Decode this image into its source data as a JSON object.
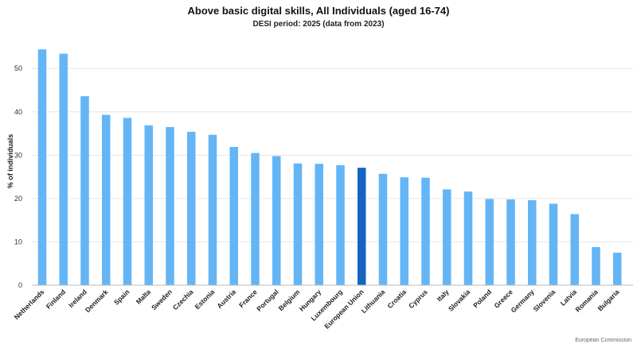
{
  "chart_data": {
    "type": "bar",
    "title": "Above basic digital skills, All Individuals (aged 16-74)",
    "subtitle": "DESI period: 2025 (data from 2023)",
    "xlabel": "",
    "ylabel": "% of individuals",
    "ylim": [
      0,
      57
    ],
    "yticks": [
      0,
      10,
      20,
      30,
      40,
      50
    ],
    "grid": true,
    "categories": [
      "Netherlands",
      "Finland",
      "Ireland",
      "Denmark",
      "Spain",
      "Malta",
      "Sweden",
      "Czechia",
      "Estonia",
      "Austria",
      "France",
      "Portugal",
      "Belgium",
      "Hungary",
      "Luxembourg",
      "European Union",
      "Lithuania",
      "Croatia",
      "Cyprus",
      "Italy",
      "Slovakia",
      "Poland",
      "Greece",
      "Germany",
      "Slovenia",
      "Latvia",
      "Romania",
      "Bulgaria"
    ],
    "values": [
      54.4,
      53.4,
      43.6,
      39.3,
      38.6,
      36.9,
      36.5,
      35.4,
      34.7,
      31.9,
      30.5,
      29.8,
      28.1,
      28.0,
      27.7,
      27.1,
      25.7,
      24.9,
      24.8,
      22.1,
      21.6,
      19.9,
      19.8,
      19.6,
      18.8,
      16.4,
      8.8,
      7.5
    ],
    "highlight": "European Union",
    "colors": {
      "bar": "#64b5f6",
      "highlight": "#1565c0"
    },
    "credit": "European Commission"
  }
}
